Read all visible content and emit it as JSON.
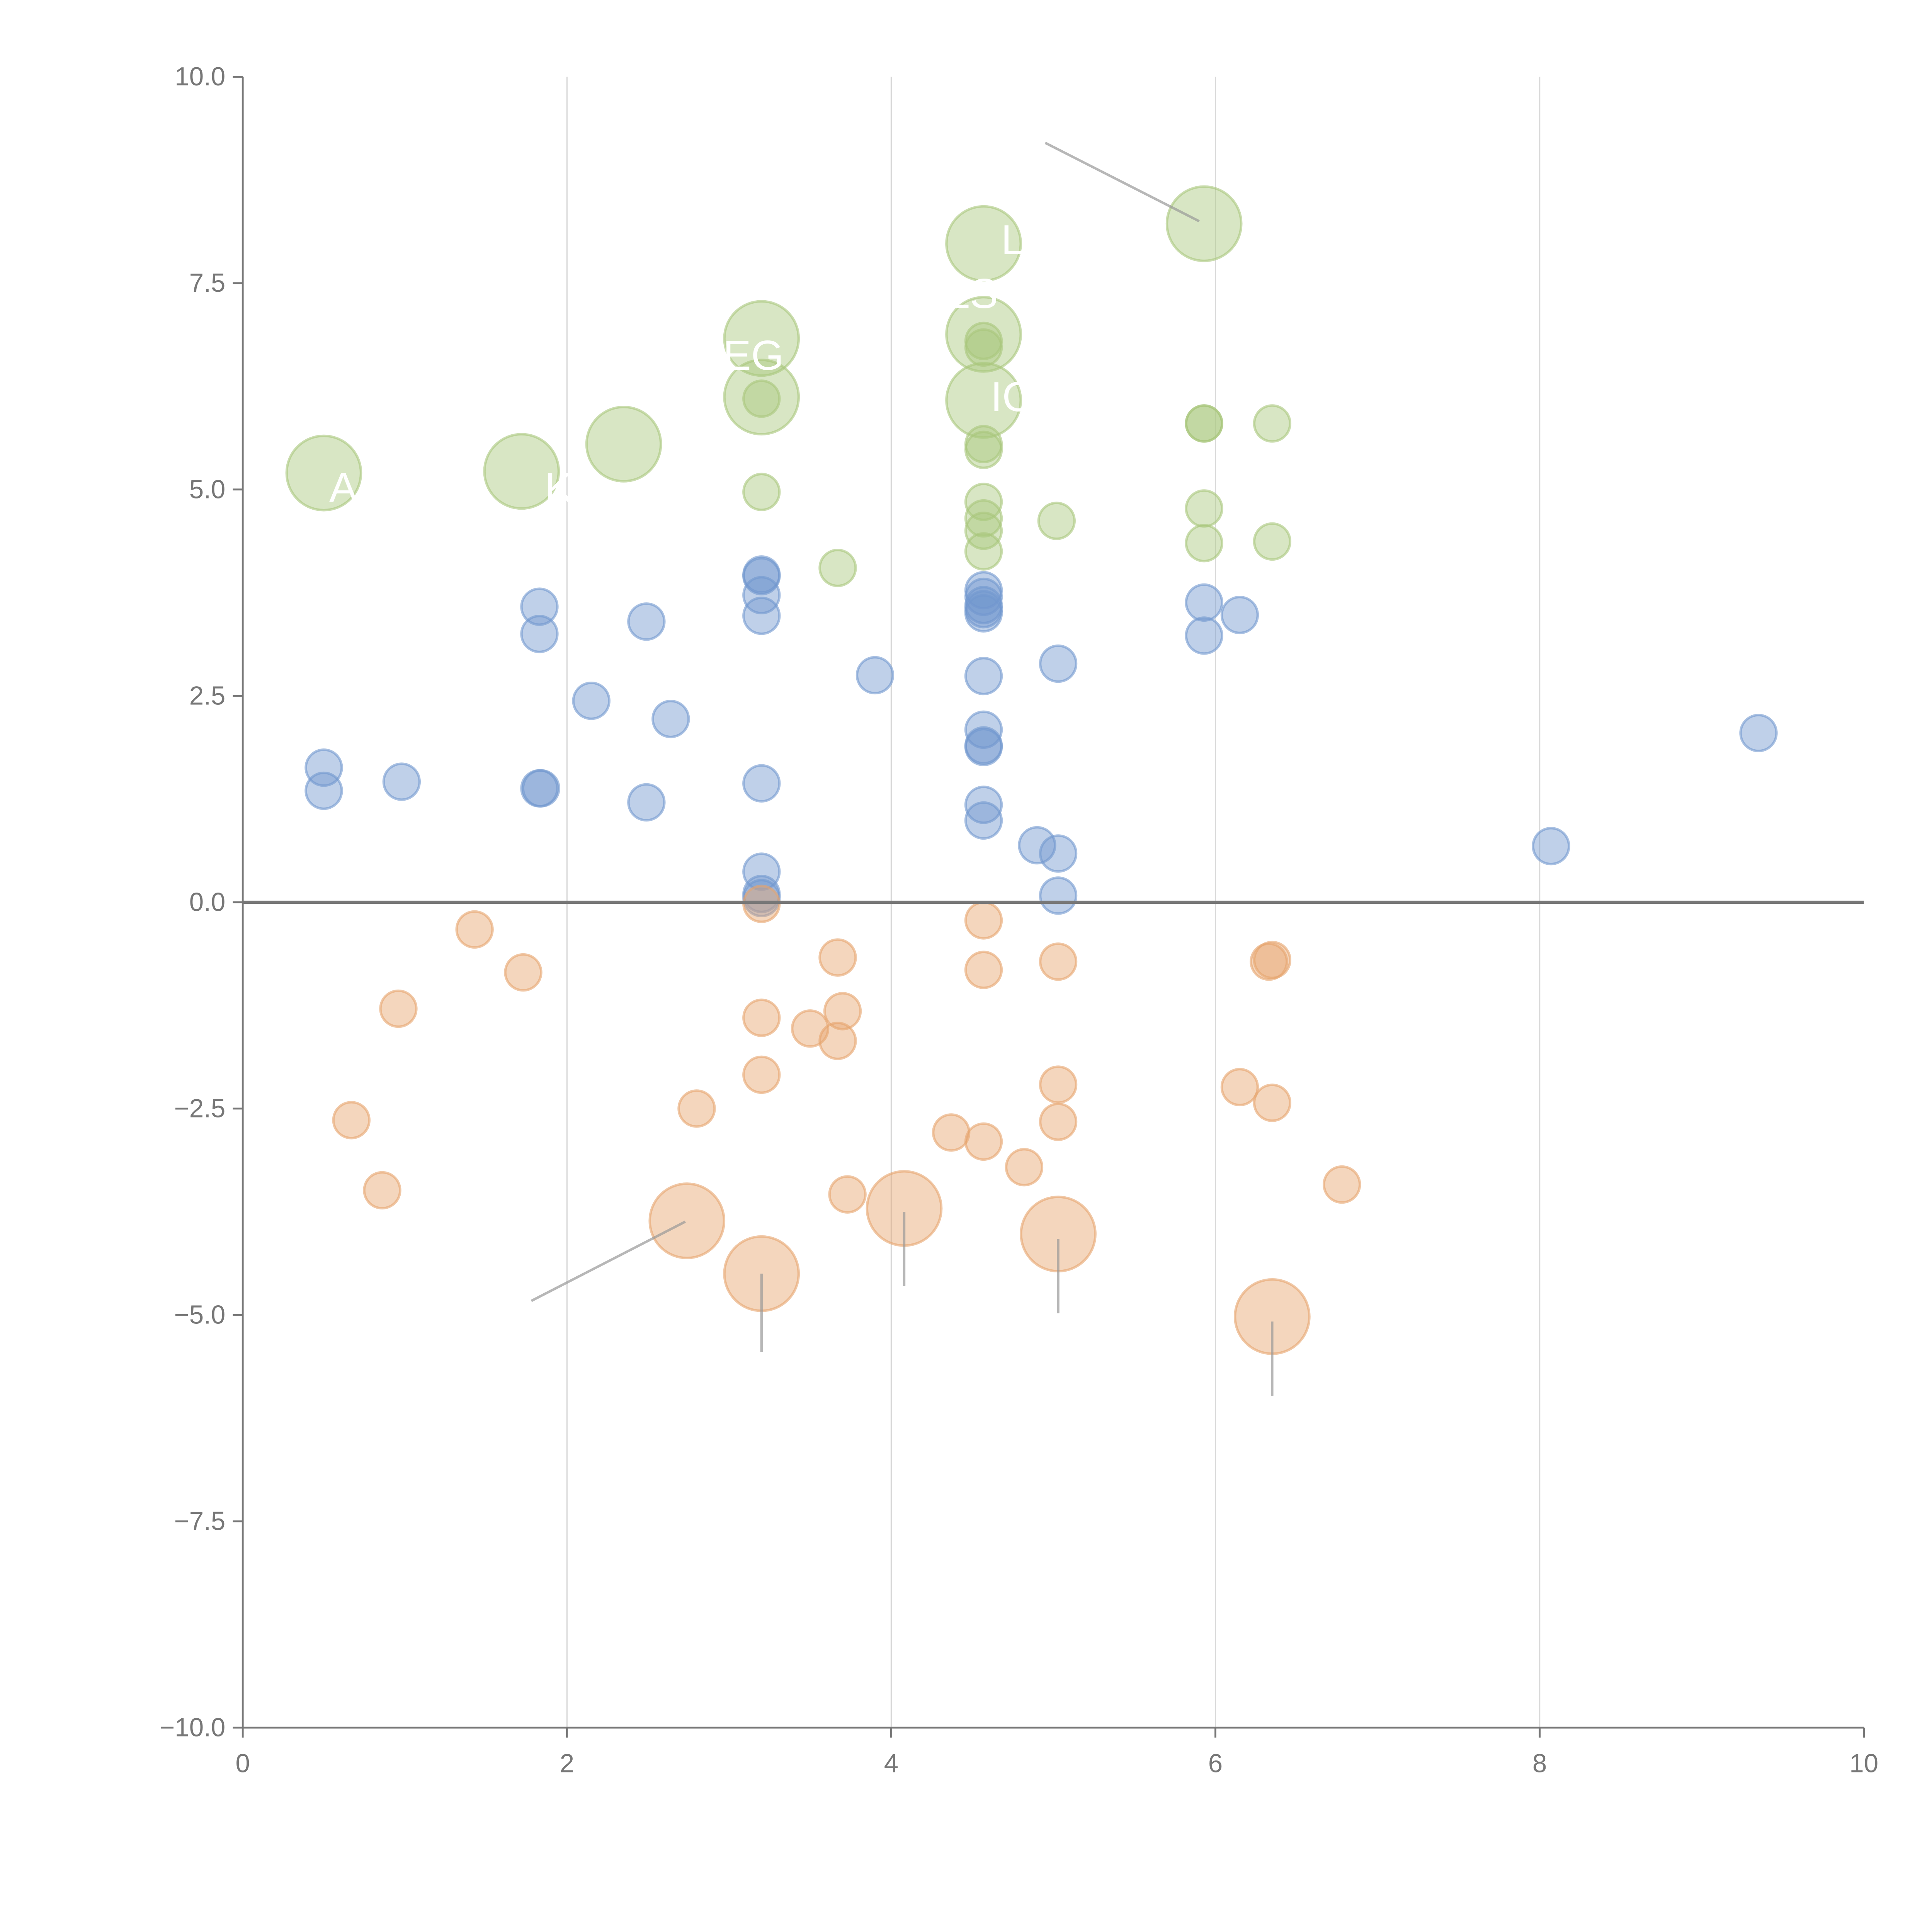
{
  "chart_data": {
    "type": "scatter",
    "title": "",
    "xlabel": "",
    "ylabel": "",
    "xlim": [
      0,
      10
    ],
    "ylim": [
      -10,
      10
    ],
    "grid": "vertical",
    "x_ticks": [
      "0",
      "2",
      "4",
      "6",
      "8",
      "10"
    ],
    "x_tick_values": [
      0,
      2,
      4,
      6,
      8,
      10
    ],
    "y_ticks": [
      "10.0",
      "7.5",
      "5.0",
      "2.5",
      "0.0",
      "−2.5",
      "−5.0",
      "−7.5",
      "−10.0"
    ],
    "y_tick_values": [
      10,
      7.5,
      5,
      2.5,
      0,
      -2.5,
      -5,
      -7.5,
      -10
    ],
    "colors": {
      "green": "#a8c77c",
      "blue": "#7197cf",
      "orange": "#e6a46c"
    },
    "series": [
      {
        "name": "green",
        "color": "#a8c77c",
        "points": [
          [
            0.5,
            5.2,
            4
          ],
          [
            1.72,
            5.22,
            4
          ],
          [
            2.35,
            5.55,
            4
          ],
          [
            3.2,
            6.83,
            4
          ],
          [
            3.2,
            6.12,
            4
          ],
          [
            4.57,
            7.98,
            4
          ],
          [
            4.57,
            6.88,
            4
          ],
          [
            4.57,
            6.08,
            4
          ],
          [
            5.93,
            8.22,
            4
          ],
          [
            3.2,
            6.1,
            1
          ],
          [
            3.2,
            4.97,
            1
          ],
          [
            3.67,
            4.05,
            1
          ],
          [
            4.57,
            6.8,
            1
          ],
          [
            4.57,
            6.72,
            1
          ],
          [
            4.57,
            5.55,
            1
          ],
          [
            4.57,
            5.48,
            1
          ],
          [
            4.57,
            4.85,
            1
          ],
          [
            4.57,
            4.65,
            1
          ],
          [
            4.57,
            4.5,
            1
          ],
          [
            4.57,
            4.25,
            1
          ],
          [
            5.02,
            4.62,
            1
          ],
          [
            5.93,
            5.8,
            1
          ],
          [
            5.93,
            5.8,
            1
          ],
          [
            6.35,
            5.8,
            1
          ],
          [
            5.93,
            4.77,
            1
          ],
          [
            5.93,
            4.35,
            1
          ],
          [
            6.35,
            4.37,
            1
          ]
        ]
      },
      {
        "name": "blue",
        "color": "#7197cf",
        "points": [
          [
            0.5,
            1.63,
            1
          ],
          [
            0.5,
            1.35,
            1
          ],
          [
            0.98,
            1.46,
            1
          ],
          [
            1.83,
            3.58,
            1
          ],
          [
            1.83,
            3.25,
            1
          ],
          [
            1.83,
            1.38,
            1
          ],
          [
            1.84,
            1.38,
            1
          ],
          [
            2.15,
            2.44,
            1
          ],
          [
            2.49,
            3.4,
            1
          ],
          [
            2.49,
            1.21,
            1
          ],
          [
            2.64,
            2.22,
            1
          ],
          [
            3.2,
            3.97,
            1
          ],
          [
            3.2,
            3.95,
            1
          ],
          [
            3.2,
            3.72,
            1
          ],
          [
            3.2,
            3.47,
            1
          ],
          [
            3.2,
            1.44,
            1
          ],
          [
            3.2,
            0.37,
            1
          ],
          [
            3.2,
            0.1,
            1
          ],
          [
            3.2,
            0.05,
            1
          ],
          [
            3.9,
            2.75,
            1
          ],
          [
            4.57,
            3.78,
            1
          ],
          [
            4.57,
            3.7,
            1
          ],
          [
            4.57,
            3.6,
            1
          ],
          [
            4.57,
            3.55,
            1
          ],
          [
            4.57,
            3.5,
            1
          ],
          [
            4.57,
            2.74,
            1
          ],
          [
            4.57,
            2.09,
            1
          ],
          [
            4.57,
            1.9,
            1
          ],
          [
            4.57,
            1.88,
            1
          ],
          [
            4.57,
            1.18,
            1
          ],
          [
            4.57,
            0.99,
            1
          ],
          [
            4.9,
            0.69,
            1
          ],
          [
            5.03,
            0.59,
            1
          ],
          [
            5.03,
            2.89,
            1
          ],
          [
            5.03,
            0.08,
            1
          ],
          [
            5.93,
            3.63,
            1
          ],
          [
            5.93,
            3.23,
            1
          ],
          [
            6.15,
            3.48,
            1
          ],
          [
            8.07,
            0.68,
            1
          ],
          [
            9.35,
            2.05,
            1
          ]
        ]
      },
      {
        "name": "orange",
        "color": "#e6a46c",
        "points": [
          [
            3.2,
            -0.02,
            1
          ],
          [
            1.43,
            -0.33,
            1
          ],
          [
            1.73,
            -0.85,
            1
          ],
          [
            0.96,
            -1.29,
            1
          ],
          [
            0.67,
            -2.64,
            1
          ],
          [
            0.86,
            -3.49,
            1
          ],
          [
            2.8,
            -2.5,
            1
          ],
          [
            3.2,
            -1.4,
            1
          ],
          [
            3.2,
            -2.09,
            1
          ],
          [
            3.5,
            -1.53,
            1
          ],
          [
            3.67,
            -0.67,
            1
          ],
          [
            3.7,
            -1.32,
            1
          ],
          [
            3.67,
            -1.68,
            1
          ],
          [
            3.73,
            -3.54,
            1
          ],
          [
            4.37,
            -2.79,
            1
          ],
          [
            4.57,
            -0.22,
            1
          ],
          [
            4.57,
            -0.82,
            1
          ],
          [
            4.57,
            -2.9,
            1
          ],
          [
            4.82,
            -3.21,
            1
          ],
          [
            5.03,
            -0.72,
            1
          ],
          [
            5.03,
            -2.21,
            1
          ],
          [
            5.03,
            -2.66,
            1
          ],
          [
            6.15,
            -2.24,
            1
          ],
          [
            6.35,
            -0.7,
            1
          ],
          [
            6.33,
            -0.72,
            1
          ],
          [
            6.35,
            -2.43,
            1
          ],
          [
            6.78,
            -3.42,
            1
          ],
          [
            2.74,
            -3.86,
            4
          ],
          [
            3.2,
            -4.5,
            4
          ],
          [
            4.08,
            -3.71,
            4
          ],
          [
            5.03,
            -4.02,
            4
          ],
          [
            6.35,
            -5.02,
            4
          ]
        ]
      }
    ],
    "annotation_lines": [
      [
        [
          4.95,
          9.2
        ],
        [
          5.9,
          8.25
        ]
      ],
      [
        [
          1.78,
          -4.83
        ],
        [
          2.73,
          -3.87
        ]
      ],
      [
        [
          3.2,
          -4.5
        ],
        [
          3.2,
          -5.45
        ]
      ],
      [
        [
          4.08,
          -3.75
        ],
        [
          4.08,
          -4.65
        ]
      ],
      [
        [
          5.03,
          -4.08
        ],
        [
          5.03,
          -4.98
        ]
      ],
      [
        [
          6.35,
          -5.08
        ],
        [
          6.35,
          -5.98
        ]
      ]
    ],
    "labels": [
      {
        "text": "A",
        "x": 0.62,
        "y": 4.85
      },
      {
        "text": "K",
        "x": 1.95,
        "y": 4.85
      },
      {
        "text": "EG",
        "x": 3.15,
        "y": 6.45
      },
      {
        "text": "LS",
        "x": 4.5,
        "y": 7.2
      },
      {
        "text": "L",
        "x": 4.75,
        "y": 7.85
      },
      {
        "text": "IO",
        "x": 4.75,
        "y": 5.95
      }
    ]
  }
}
